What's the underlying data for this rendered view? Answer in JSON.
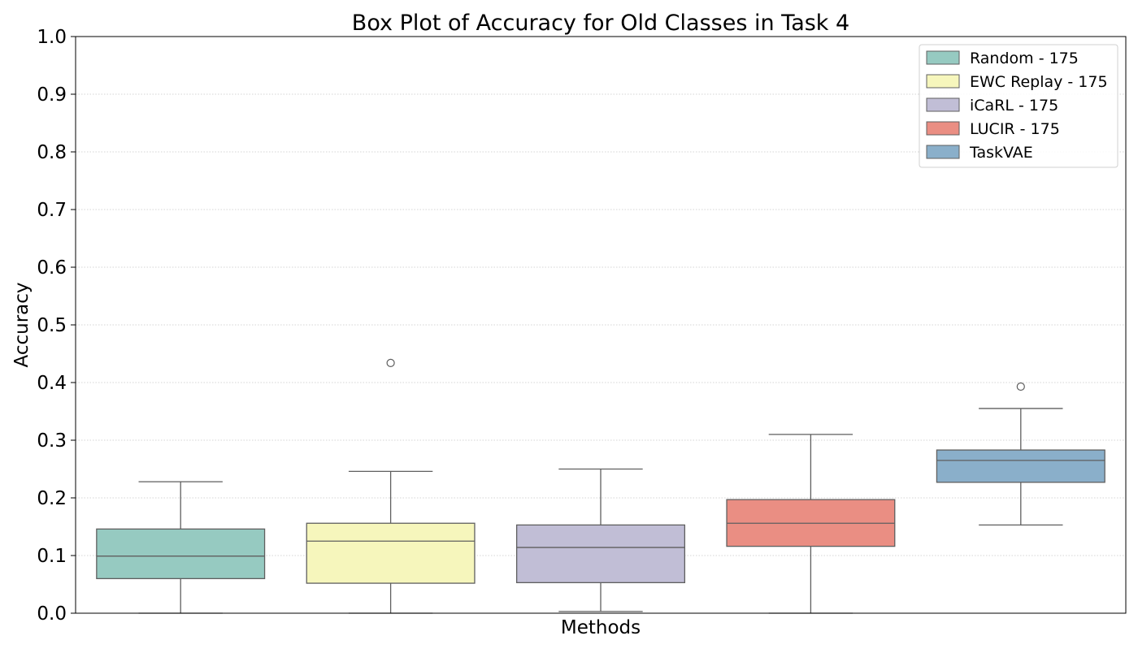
{
  "chart_data": {
    "type": "box",
    "title": "Box Plot of Accuracy for Old Classes in Task 4",
    "xlabel": "Methods",
    "ylabel": "Accuracy",
    "ylim": [
      0,
      1.0
    ],
    "yticks": [
      "0.0",
      "0.1",
      "0.2",
      "0.3",
      "0.4",
      "0.5",
      "0.6",
      "0.7",
      "0.8",
      "0.9",
      "1.0"
    ],
    "grid": "horizontal-dotted",
    "legend": {
      "placement": "top-right"
    },
    "series": [
      {
        "name": "Random - 175",
        "color": "#96cac1",
        "whisker_low": 0.0,
        "q1": 0.06,
        "median": 0.099,
        "q3": 0.146,
        "whisker_high": 0.228,
        "outliers": []
      },
      {
        "name": "EWC Replay - 175",
        "color": "#f6f6bc",
        "whisker_low": 0.0,
        "q1": 0.052,
        "median": 0.125,
        "q3": 0.156,
        "whisker_high": 0.246,
        "outliers": [
          0.434
        ]
      },
      {
        "name": "iCaRL - 175",
        "color": "#c1bed6",
        "whisker_low": 0.003,
        "q1": 0.053,
        "median": 0.114,
        "q3": 0.153,
        "whisker_high": 0.25,
        "outliers": []
      },
      {
        "name": "LUCIR - 175",
        "color": "#ea8e83",
        "whisker_low": 0.0,
        "q1": 0.116,
        "median": 0.156,
        "q3": 0.197,
        "whisker_high": 0.31,
        "outliers": []
      },
      {
        "name": "TaskVAE",
        "color": "#8aafca",
        "whisker_low": 0.153,
        "q1": 0.227,
        "median": 0.265,
        "q3": 0.283,
        "whisker_high": 0.355,
        "outliers": [
          0.393
        ]
      }
    ]
  }
}
